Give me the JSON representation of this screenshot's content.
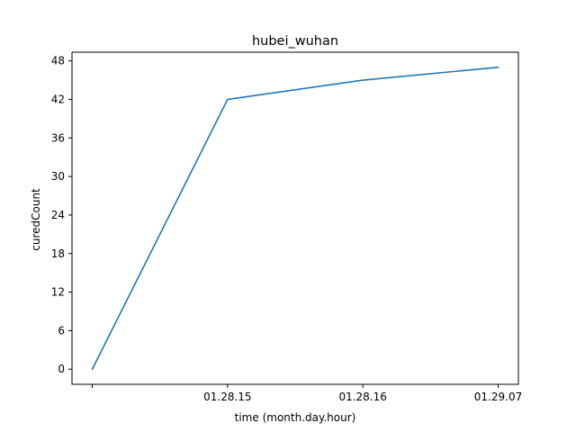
{
  "chart_data": {
    "type": "line",
    "title": "hubei_wuhan",
    "xlabel": "time (month.day.hour)",
    "ylabel": "curedCount",
    "categories": [
      "",
      "01.28.15",
      "01.28.16",
      "01.29.07"
    ],
    "series": [
      {
        "values": [
          0,
          42,
          45,
          47
        ],
        "color": "#1f77b4"
      }
    ],
    "ylim": [
      -2.35,
      49.35
    ],
    "yticks": [
      0,
      6,
      12,
      18,
      24,
      30,
      36,
      42,
      48
    ],
    "grid": false,
    "legend": false
  }
}
